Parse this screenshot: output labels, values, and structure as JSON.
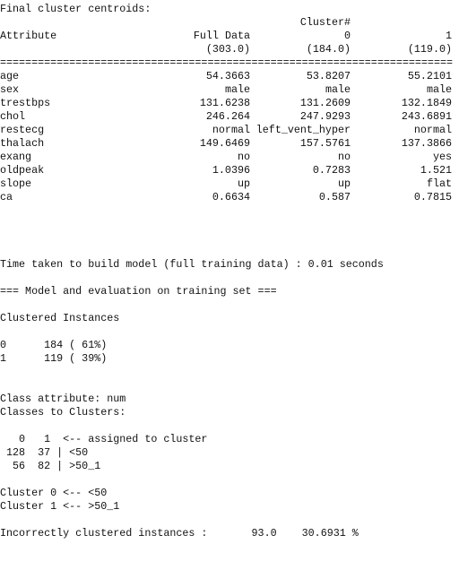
{
  "title": "Final cluster centroids:",
  "table": {
    "cluster_label": "Cluster#",
    "columns": [
      "Attribute",
      "Full Data",
      "0",
      "1"
    ],
    "counts": [
      "(303.0)",
      "(184.0)",
      "(119.0)"
    ],
    "separator": "========================================================================",
    "rows": [
      [
        "age",
        "54.3663",
        "53.8207",
        "55.2101"
      ],
      [
        "sex",
        "male",
        "male",
        "male"
      ],
      [
        "trestbps",
        "131.6238",
        "131.2609",
        "132.1849"
      ],
      [
        "chol",
        "246.264",
        "247.9293",
        "243.6891"
      ],
      [
        "restecg",
        "normal",
        "left_vent_hyper",
        "normal"
      ],
      [
        "thalach",
        "149.6469",
        "157.5761",
        "137.3866"
      ],
      [
        "exang",
        "no",
        "no",
        "yes"
      ],
      [
        "oldpeak",
        "1.0396",
        "0.7283",
        "1.521"
      ],
      [
        "slope",
        "up",
        "up",
        "flat"
      ],
      [
        "ca",
        "0.6634",
        "0.587",
        "0.7815"
      ]
    ]
  },
  "blocks": [
    [
      "Time taken to build model (full training data) : 0.01 seconds"
    ],
    [
      "=== Model and evaluation on training set ==="
    ],
    [
      "Clustered Instances"
    ],
    [
      "0      184 ( 61%)",
      "1      119 ( 39%)"
    ],
    [
      "Class attribute: num",
      "Classes to Clusters:"
    ],
    [
      "   0   1  <-- assigned to cluster",
      " 128  37 | <50",
      "  56  82 | >50_1"
    ],
    [
      "Cluster 0 <-- <50",
      "Cluster 1 <-- >50_1"
    ],
    [
      "Incorrectly clustered instances :       93.0    30.6931 %"
    ]
  ]
}
